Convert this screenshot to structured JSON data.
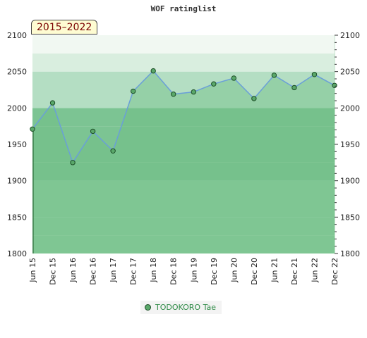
{
  "chart_data": {
    "type": "area",
    "title": "WOF ratinglist",
    "period_label": "2015–2022",
    "categories": [
      "Jun 15",
      "Dec 15",
      "Jun 16",
      "Dec 16",
      "Jun 17",
      "Dec 17",
      "Jun 18",
      "Dec 18",
      "Jun 19",
      "Dec 19",
      "Jun 20",
      "Dec 20",
      "Jun 21",
      "Dec 21",
      "Jun 22",
      "Dec 22"
    ],
    "series": [
      {
        "name": "TODOKORO Tae",
        "values": [
          1971,
          2007,
          1925,
          1968,
          1941,
          2023,
          2051,
          2019,
          2022,
          2033,
          2041,
          2013,
          2045,
          2028,
          2046,
          2031
        ]
      }
    ],
    "ylim": [
      1800,
      2100
    ],
    "yticks": [
      1800,
      1850,
      1900,
      1950,
      2000,
      2050,
      2100
    ],
    "grid": true,
    "legend_position": "bottom",
    "colors": {
      "line": "#6a9fd8",
      "marker_fill": "#5aa86a",
      "marker_edge": "#1b4d26",
      "band_dark": "#7cc493",
      "band_mid": "#8dcc9f",
      "band_light": "#b4dec3",
      "band_pale": "#d9eedf",
      "band_white": "#f1f8f2"
    }
  }
}
